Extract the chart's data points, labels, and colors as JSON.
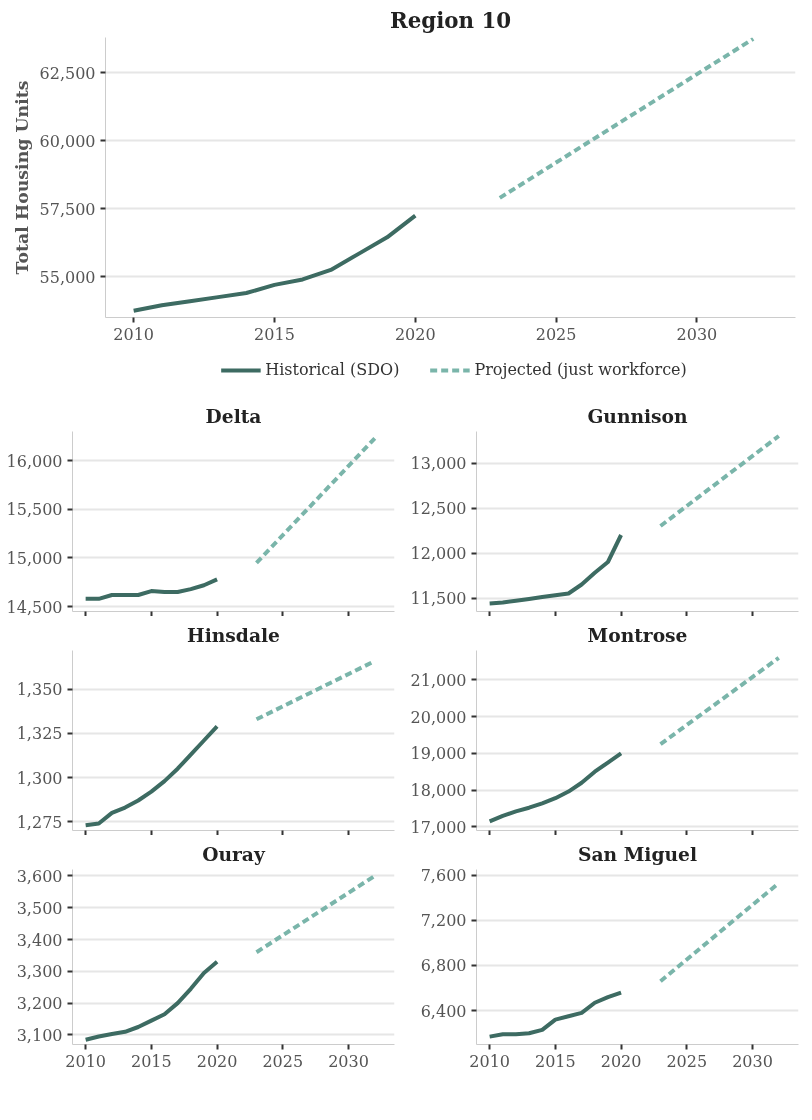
{
  "chart_data": [
    {
      "type": "line",
      "title": "Region 10",
      "ylabel": "Total Housing Units",
      "legend": "bottom",
      "grid": "y",
      "line_style": "solid",
      "xlim": [
        2009,
        2033.5
      ],
      "xticks": [
        2010,
        2015,
        2020,
        2025,
        2030
      ],
      "ylim": [
        53500,
        63800
      ],
      "yticks": [
        {
          "value": 55000,
          "label": "55,000"
        },
        {
          "value": 57500,
          "label": "57,500"
        },
        {
          "value": 60000,
          "label": "60,000"
        },
        {
          "value": 62500,
          "label": "62,500"
        }
      ],
      "series": [
        {
          "name": "Historical (SDO)",
          "color": "#3d6b62",
          "x": [
            2010,
            2011,
            2012,
            2013,
            2014,
            2015,
            2016,
            2017,
            2018,
            2019,
            2020
          ],
          "values": [
            53750,
            53950,
            54100,
            54250,
            54400,
            54700,
            54900,
            55250,
            55850,
            56450,
            57250
          ]
        },
        {
          "name": "Projected (just workforce)",
          "color": "#7ab5aa",
          "line_style": "dashed",
          "x": [
            2023,
            2032
          ],
          "values": [
            57900,
            63750
          ]
        }
      ]
    },
    {
      "type": "line",
      "title": "Delta",
      "grid": "y",
      "tick_labels": "y",
      "xlim": [
        2009,
        2033.5
      ],
      "xticks": [
        2010,
        2015,
        2020,
        2025,
        2030
      ],
      "ylim": [
        14450,
        16300
      ],
      "yticks": [
        {
          "value": 14500,
          "label": "14,500"
        },
        {
          "value": 15000,
          "label": "15,000"
        },
        {
          "value": 15500,
          "label": "15,500"
        },
        {
          "value": 16000,
          "label": "16,000"
        }
      ],
      "series": [
        {
          "color": "#3d6b62",
          "x": [
            2010,
            2011,
            2012,
            2013,
            2014,
            2015,
            2016,
            2017,
            2018,
            2019,
            2020
          ],
          "values": [
            14580,
            14580,
            14620,
            14620,
            14620,
            14660,
            14650,
            14650,
            14680,
            14720,
            14780
          ]
        },
        {
          "color": "#7ab5aa",
          "line_style": "dashed",
          "x": [
            2023,
            2032
          ],
          "values": [
            14950,
            16230
          ]
        }
      ]
    },
    {
      "type": "line",
      "title": "Gunnison",
      "grid": "y",
      "tick_labels": "y",
      "xlim": [
        2009,
        2033.5
      ],
      "xticks": [
        2010,
        2015,
        2020,
        2025,
        2030
      ],
      "ylim": [
        11350,
        13350
      ],
      "yticks": [
        {
          "value": 11500,
          "label": "11,500"
        },
        {
          "value": 12000,
          "label": "12,000"
        },
        {
          "value": 12500,
          "label": "12,500"
        },
        {
          "value": 13000,
          "label": "13,000"
        }
      ],
      "series": [
        {
          "color": "#3d6b62",
          "x": [
            2010,
            2011,
            2012,
            2013,
            2014,
            2015,
            2016,
            2017,
            2018,
            2019,
            2020
          ],
          "values": [
            11440,
            11450,
            11470,
            11490,
            11510,
            11530,
            11550,
            11650,
            11780,
            11900,
            12200
          ]
        },
        {
          "color": "#7ab5aa",
          "line_style": "dashed",
          "x": [
            2023,
            2032
          ],
          "values": [
            12300,
            13300
          ]
        }
      ]
    },
    {
      "type": "line",
      "title": "Hinsdale",
      "grid": "y",
      "tick_labels": "y",
      "xlim": [
        2009,
        2033.5
      ],
      "xticks": [
        2010,
        2015,
        2020,
        2025,
        2030
      ],
      "ylim": [
        1270,
        1372
      ],
      "yticks": [
        {
          "value": 1275,
          "label": "1,275"
        },
        {
          "value": 1300,
          "label": "1,300"
        },
        {
          "value": 1325,
          "label": "1,325"
        },
        {
          "value": 1350,
          "label": "1,350"
        }
      ],
      "series": [
        {
          "color": "#3d6b62",
          "x": [
            2010,
            2011,
            2012,
            2013,
            2014,
            2015,
            2016,
            2017,
            2018,
            2019,
            2020
          ],
          "values": [
            1273,
            1274,
            1280,
            1283,
            1287,
            1292,
            1298,
            1305,
            1313,
            1321,
            1329
          ]
        },
        {
          "color": "#7ab5aa",
          "line_style": "dashed",
          "x": [
            2023,
            2032
          ],
          "values": [
            1333,
            1366
          ]
        }
      ]
    },
    {
      "type": "line",
      "title": "Montrose",
      "grid": "y",
      "tick_labels": "y",
      "xlim": [
        2009,
        2033.5
      ],
      "xticks": [
        2010,
        2015,
        2020,
        2025,
        2030
      ],
      "ylim": [
        16900,
        21800
      ],
      "yticks": [
        {
          "value": 17000,
          "label": "17,000"
        },
        {
          "value": 18000,
          "label": "18,000"
        },
        {
          "value": 19000,
          "label": "19,000"
        },
        {
          "value": 20000,
          "label": "20,000"
        },
        {
          "value": 21000,
          "label": "21,000"
        }
      ],
      "series": [
        {
          "color": "#3d6b62",
          "x": [
            2010,
            2011,
            2012,
            2013,
            2014,
            2015,
            2016,
            2017,
            2018,
            2019,
            2020
          ],
          "values": [
            17150,
            17300,
            17420,
            17520,
            17640,
            17780,
            17960,
            18200,
            18500,
            18750,
            19000
          ]
        },
        {
          "color": "#7ab5aa",
          "line_style": "dashed",
          "x": [
            2023,
            2032
          ],
          "values": [
            19250,
            21600
          ]
        }
      ]
    },
    {
      "type": "line",
      "title": "Ouray",
      "grid": "y",
      "xlim": [
        2009,
        2033.5
      ],
      "xticks": [
        2010,
        2015,
        2020,
        2025,
        2030
      ],
      "ylim": [
        3070,
        3620
      ],
      "yticks": [
        {
          "value": 3100,
          "label": "3,100"
        },
        {
          "value": 3200,
          "label": "3,200"
        },
        {
          "value": 3300,
          "label": "3,300"
        },
        {
          "value": 3400,
          "label": "3,400"
        },
        {
          "value": 3500,
          "label": "3,500"
        },
        {
          "value": 3600,
          "label": "3,600"
        }
      ],
      "series": [
        {
          "color": "#3d6b62",
          "x": [
            2010,
            2011,
            2012,
            2013,
            2014,
            2015,
            2016,
            2017,
            2018,
            2019,
            2020
          ],
          "values": [
            3085,
            3095,
            3103,
            3110,
            3125,
            3145,
            3165,
            3200,
            3245,
            3295,
            3330
          ]
        },
        {
          "color": "#7ab5aa",
          "line_style": "dashed",
          "x": [
            2023,
            2032
          ],
          "values": [
            3360,
            3600
          ]
        }
      ]
    },
    {
      "type": "line",
      "title": "San Miguel",
      "grid": "y",
      "xlim": [
        2009,
        2033.5
      ],
      "xticks": [
        2010,
        2015,
        2020,
        2025,
        2030
      ],
      "ylim": [
        6100,
        7650
      ],
      "yticks": [
        {
          "value": 6400,
          "label": "6,400"
        },
        {
          "value": 6800,
          "label": "6,800"
        },
        {
          "value": 7200,
          "label": "7,200"
        },
        {
          "value": 7600,
          "label": "7,600"
        }
      ],
      "series": [
        {
          "color": "#3d6b62",
          "x": [
            2010,
            2011,
            2012,
            2013,
            2014,
            2015,
            2016,
            2017,
            2018,
            2019,
            2020
          ],
          "values": [
            6170,
            6190,
            6190,
            6200,
            6230,
            6320,
            6350,
            6380,
            6470,
            6520,
            6560
          ]
        },
        {
          "color": "#7ab5aa",
          "line_style": "dashed",
          "x": [
            2023,
            2032
          ],
          "values": [
            6660,
            7530
          ]
        }
      ]
    }
  ]
}
